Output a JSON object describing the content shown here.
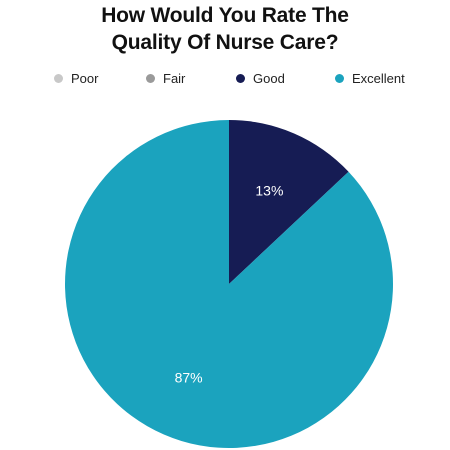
{
  "chart_data": {
    "type": "pie",
    "title_lines": [
      "How Would You Rate The",
      "Quality Of Nurse Care?"
    ],
    "categories": [
      "Poor",
      "Fair",
      "Good",
      "Excellent"
    ],
    "values": [
      0,
      0,
      13,
      87
    ],
    "value_labels": [
      "",
      "",
      "13%",
      "87%"
    ],
    "colors": [
      "#c8c8c8",
      "#9a9a9a",
      "#161c54",
      "#1ba3be"
    ],
    "label_color": "#ffffff",
    "start_angle_deg": 0,
    "direction": "clockwise",
    "legend_position": "top"
  }
}
